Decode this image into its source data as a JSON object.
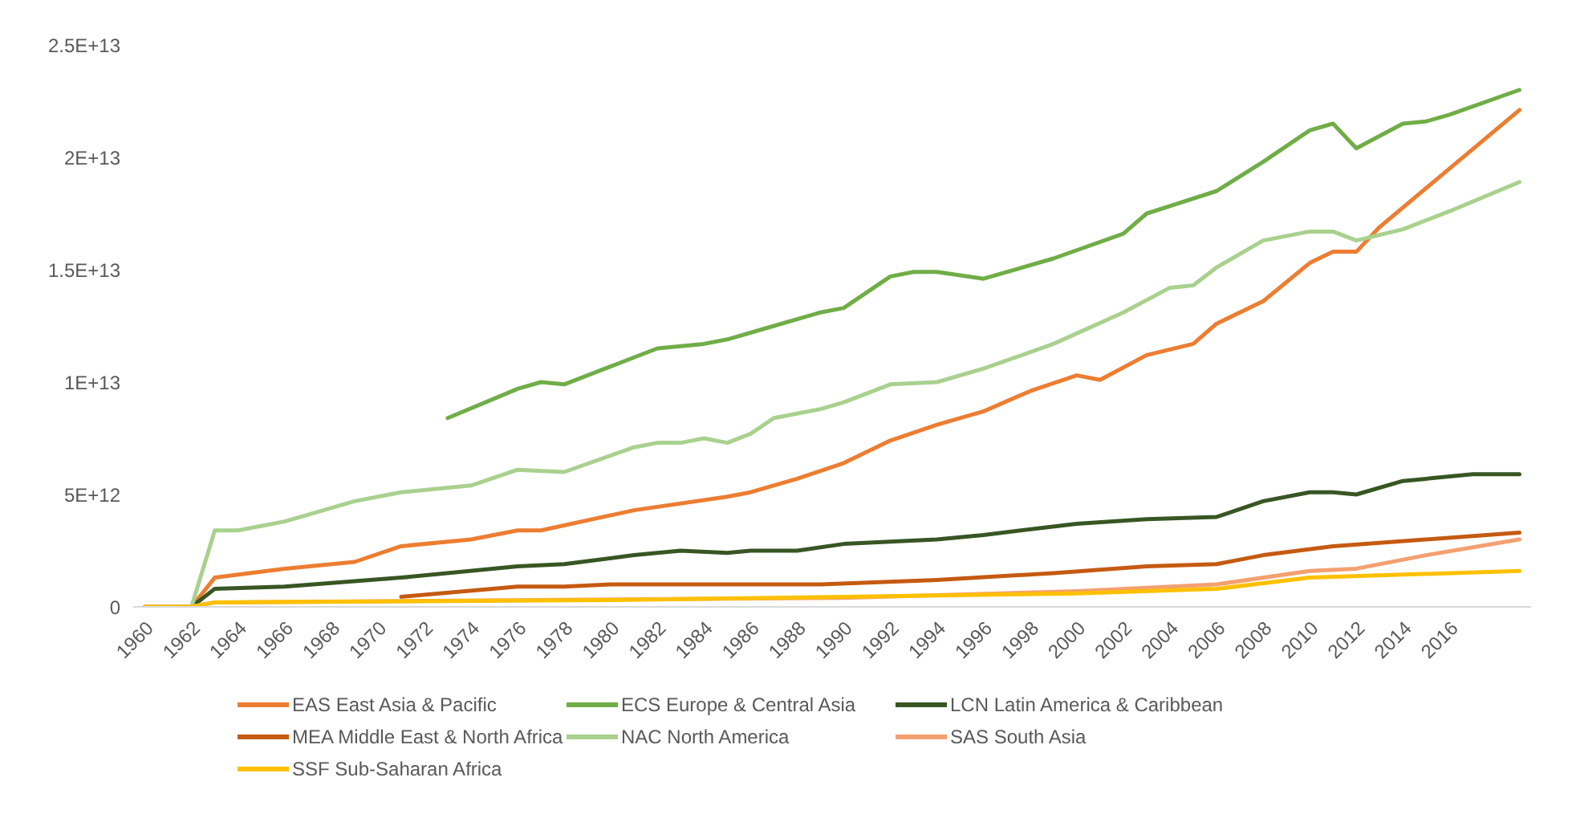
{
  "chart_data": {
    "type": "line",
    "xlim": [
      1959.5,
      2019.5
    ],
    "xticks": [
      1960,
      1962,
      1964,
      1966,
      1968,
      1970,
      1972,
      1974,
      1976,
      1978,
      1980,
      1982,
      1984,
      1986,
      1988,
      1990,
      1992,
      1994,
      1996,
      1998,
      2000,
      2002,
      2004,
      2006,
      2008,
      2010,
      2012,
      2014,
      2016
    ],
    "ylim": [
      0,
      25000000000000.0
    ],
    "yticks": [
      0,
      {
        "value": 5000000000000.0,
        "label": "5E+12"
      },
      {
        "value": 10000000000000.0,
        "label": "1E+13"
      },
      {
        "value": 15000000000000.0,
        "label": "1.5E+13"
      },
      {
        "value": 20000000000000.0,
        "label": "2E+13"
      },
      {
        "value": 25000000000000.0,
        "label": "2.5E+13"
      }
    ],
    "grid": false,
    "legend": "bottom",
    "marker": "none",
    "line_style": "solid",
    "series": [
      {
        "name": "EAS East Asia & Pacific",
        "color": "#ed7d31",
        "x": [
          1960,
          1961,
          1962,
          1963,
          1966,
          1969,
          1971,
          1974,
          1976,
          1977,
          1981,
          1985,
          1986,
          1988,
          1990,
          1992,
          1994,
          1996,
          1998,
          2000,
          2001,
          2003,
          2005,
          2006,
          2008,
          2010,
          2011,
          2012,
          2013,
          2019
        ],
        "values": [
          0,
          0,
          0,
          1300000000000.0,
          1700000000000.0,
          2000000000000.0,
          2700000000000.0,
          3000000000000.0,
          3400000000000.0,
          3400000000000.0,
          4300000000000.0,
          4900000000000.0,
          5100000000000.0,
          5700000000000.0,
          6400000000000.0,
          7400000000000.0,
          8100000000000.0,
          8700000000000.0,
          9600000000000.0,
          10300000000000.0,
          10100000000000.0,
          11200000000000.0,
          11700000000000.0,
          12600000000000.0,
          13600000000000.0,
          15300000000000.0,
          15800000000000.0,
          15800000000000.0,
          16900000000000.0,
          22100000000000.0
        ]
      },
      {
        "name": "ECS Europe & Central Asia",
        "color": "#70ad47",
        "x": [
          1973,
          1976,
          1977,
          1978,
          1980,
          1982,
          1984,
          1985,
          1987,
          1989,
          1990,
          1992,
          1993,
          1994,
          1996,
          1999,
          2002,
          2003,
          2006,
          2008,
          2010,
          2011,
          2012,
          2014,
          2015,
          2016,
          2019
        ],
        "values": [
          8400000000000.0,
          9700000000000.0,
          10000000000000.0,
          9900000000000.0,
          10700000000000.0,
          11500000000000.0,
          11700000000000.0,
          11900000000000.0,
          12500000000000.0,
          13100000000000.0,
          13300000000000.0,
          14700000000000.0,
          14900000000000.0,
          14900000000000.0,
          14600000000000.0,
          15500000000000.0,
          16600000000000.0,
          17500000000000.0,
          18500000000000.0,
          19800000000000.0,
          21200000000000.0,
          21500000000000.0,
          20400000000000.0,
          21500000000000.0,
          21600000000000.0,
          21900000000000.0,
          23000000000000.0
        ]
      },
      {
        "name": "LCN Latin America & Caribbean",
        "color": "#375623",
        "x": [
          1960,
          1961,
          1962,
          1963,
          1966,
          1971,
          1976,
          1978,
          1981,
          1983,
          1985,
          1986,
          1988,
          1990,
          1994,
          1996,
          2000,
          2003,
          2006,
          2008,
          2010,
          2011,
          2012,
          2014,
          2017,
          2019
        ],
        "values": [
          0,
          0,
          0,
          800000000000.0,
          900000000000.0,
          1300000000000.0,
          1800000000000.0,
          1900000000000.0,
          2300000000000.0,
          2500000000000.0,
          2400000000000.0,
          2500000000000.0,
          2500000000000.0,
          2800000000000.0,
          3000000000000.0,
          3200000000000.0,
          3700000000000.0,
          3900000000000.0,
          4000000000000.0,
          4700000000000.0,
          5100000000000.0,
          5100000000000.0,
          5000000000000.0,
          5600000000000.0,
          5900000000000.0,
          5900000000000.0
        ]
      },
      {
        "name": "MEA Middle East & North Africa",
        "color": "#c55a11",
        "x": [
          1971,
          1976,
          1978,
          1980,
          1984,
          1989,
          1994,
          1999,
          2003,
          2006,
          2008,
          2011,
          2019
        ],
        "values": [
          450000000000.0,
          900000000000.0,
          900000000000.0,
          1000000000000.0,
          1000000000000.0,
          1000000000000.0,
          1200000000000.0,
          1500000000000.0,
          1800000000000.0,
          1900000000000.0,
          2300000000000.0,
          2700000000000.0,
          3300000000000.0
        ]
      },
      {
        "name": "NAC North America",
        "color": "#a9d18e",
        "x": [
          1960,
          1961,
          1962,
          1963,
          1964,
          1966,
          1969,
          1971,
          1974,
          1976,
          1978,
          1981,
          1982,
          1983,
          1984,
          1985,
          1986,
          1987,
          1989,
          1990,
          1992,
          1994,
          1996,
          1999,
          2002,
          2004,
          2005,
          2006,
          2008,
          2010,
          2011,
          2012,
          2014,
          2016,
          2019
        ],
        "values": [
          0,
          0,
          0,
          3400000000000.0,
          3400000000000.0,
          3800000000000.0,
          4700000000000.0,
          5100000000000.0,
          5400000000000.0,
          6100000000000.0,
          6000000000000.0,
          7100000000000.0,
          7300000000000.0,
          7300000000000.0,
          7500000000000.0,
          7300000000000.0,
          7700000000000.0,
          8400000000000.0,
          8800000000000.0,
          9100000000000.0,
          9900000000000.0,
          10000000000000.0,
          10600000000000.0,
          11700000000000.0,
          13100000000000.0,
          14200000000000.0,
          14300000000000.0,
          15100000000000.0,
          16300000000000.0,
          16700000000000.0,
          16700000000000.0,
          16300000000000.0,
          16800000000000.0,
          17600000000000.0,
          18900000000000.0
        ]
      },
      {
        "name": "SAS South Asia",
        "color": "#f4a070",
        "x": [
          1960,
          1961,
          1962,
          1963,
          1990,
          2000,
          2006,
          2010,
          2012,
          2015,
          2019
        ],
        "values": [
          0,
          0,
          0,
          200000000000.0,
          400000000000.0,
          700000000000.0,
          1000000000000.0,
          1600000000000.0,
          1700000000000.0,
          2300000000000.0,
          3000000000000.0
        ]
      },
      {
        "name": "SSF Sub-Saharan Africa",
        "color": "#ffc000",
        "x": [
          1960,
          1961,
          1962,
          1963,
          1980,
          1990,
          2000,
          2006,
          2010,
          2019
        ],
        "values": [
          0,
          0,
          0,
          200000000000.0,
          300000000000.0,
          450000000000.0,
          600000000000.0,
          800000000000.0,
          1300000000000.0,
          1600000000000.0
        ]
      }
    ]
  }
}
